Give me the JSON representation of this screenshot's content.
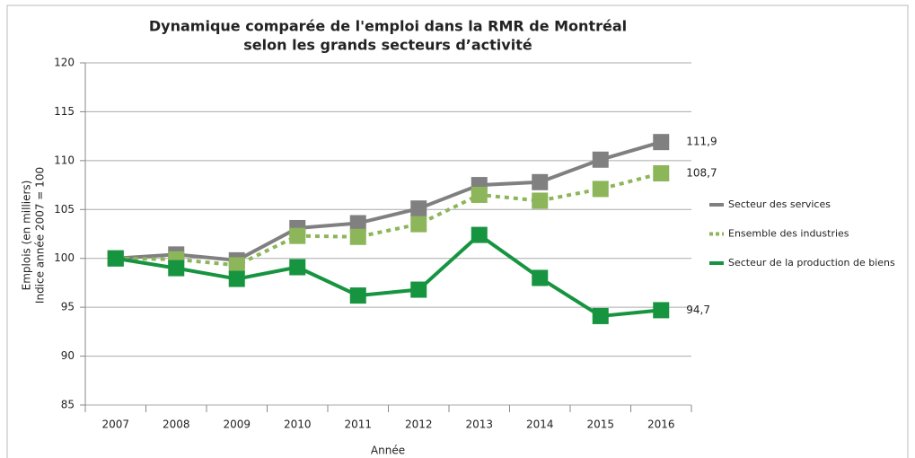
{
  "chart_data": {
    "type": "line",
    "title": [
      "Dynamique comparée de l'emploi dans la RMR de Montréal",
      "selon les grands secteurs d’activité"
    ],
    "y_label": [
      "Emplois (en milliers)",
      "Indice année 2007 = 100"
    ],
    "x_label": "Année",
    "categories": [
      "2007",
      "2008",
      "2009",
      "2010",
      "2011",
      "2012",
      "2013",
      "2014",
      "2015",
      "2016"
    ],
    "series": [
      {
        "name": "Secteur des services",
        "color": "#808080",
        "line_style": "solid",
        "values": [
          100,
          100.4,
          99.8,
          103.1,
          103.6,
          105.1,
          107.5,
          107.8,
          110.1,
          111.9
        ],
        "value_labels": [
          null,
          null,
          null,
          null,
          null,
          null,
          null,
          null,
          null,
          "111,9"
        ]
      },
      {
        "name": "Ensemble des industries",
        "color": "#8db55a",
        "line_style": "dotted",
        "values": [
          100,
          99.9,
          99.3,
          102.3,
          102.2,
          103.5,
          106.5,
          105.9,
          107.1,
          108.7
        ],
        "value_labels": [
          null,
          null,
          null,
          null,
          null,
          null,
          null,
          null,
          null,
          "108,7"
        ]
      },
      {
        "name": "Secteur de la production de biens",
        "color": "#16943f",
        "line_style": "solid",
        "values": [
          100,
          99,
          97.9,
          99.1,
          96.2,
          96.8,
          102.4,
          98.0,
          94.1,
          94.7
        ],
        "value_labels": [
          null,
          null,
          null,
          null,
          null,
          null,
          null,
          null,
          null,
          "94,7"
        ]
      }
    ],
    "ylim": [
      85,
      120
    ],
    "yticks": [
      85,
      90,
      95,
      100,
      105,
      110,
      115,
      120
    ],
    "grid": true,
    "legend": "right"
  }
}
